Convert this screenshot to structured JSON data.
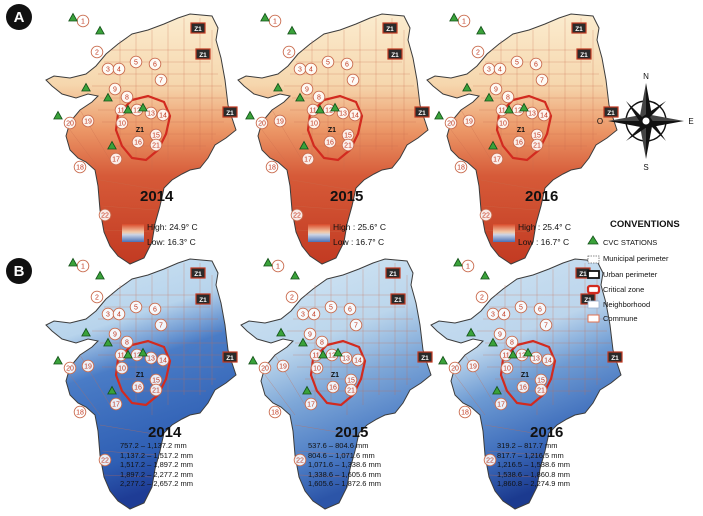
{
  "panels": [
    {
      "letter": "A",
      "type": "temperature",
      "maps": [
        {
          "year": "2014",
          "legend": {
            "high": "High: 24.9° C",
            "low": "Low: 16.3° C"
          }
        },
        {
          "year": "2015",
          "legend": {
            "high": "High : 25.6° C",
            "low": "Low : 16.7° C"
          }
        },
        {
          "year": "2016",
          "legend": {
            "high": "High : 25.4° C",
            "low": "Low : 16.7° C"
          }
        }
      ]
    },
    {
      "letter": "B",
      "type": "precipitation",
      "maps": [
        {
          "year": "2014",
          "ranges": [
            "757.2 – 1,137.2 mm",
            "1,137.2 – 1,517.2 mm",
            "1,517.2 – 1,897.2 mm",
            "1,897.2 – 2,277.2 mm",
            "2,277.2 – 2,657.2 mm"
          ]
        },
        {
          "year": "2015",
          "ranges": [
            "537.6 – 804.6 mm",
            "804.6 – 1,071.6 mm",
            "1,071.6 – 1,338.6 mm",
            "1,338.6 – 1,605.6 mm",
            "1,605.6 – 1,872.6 mm"
          ]
        },
        {
          "year": "2016",
          "ranges": [
            "319.2 – 817.7 mm",
            "817.7 – 1,216.5 mm",
            "1,216.5 – 1,538.6 mm",
            "1,538.6 – 1,860.8 mm",
            "1,860.8 – 2,274.9 mm"
          ]
        }
      ]
    }
  ],
  "commune_numbers": [
    "1",
    "2",
    "3",
    "4",
    "5",
    "6",
    "7",
    "8",
    "9",
    "10",
    "11",
    "12",
    "13",
    "14",
    "15",
    "16",
    "17",
    "18",
    "19",
    "20",
    "21",
    "22"
  ],
  "zone_label": "Z1",
  "compass": {
    "n": "N",
    "s": "S",
    "e": "E",
    "w": "O"
  },
  "conventions": {
    "title": "CONVENTIONS",
    "items": [
      {
        "key": "cvc",
        "label": "CVC STATIONS"
      },
      {
        "key": "municipal",
        "label": "Municipal perimeter"
      },
      {
        "key": "urban",
        "label": "Urban perimeter"
      },
      {
        "key": "critical",
        "label": "Critical zone"
      },
      {
        "key": "neighborhood",
        "label": "Neighborhood"
      },
      {
        "key": "commune",
        "label": "Commune"
      }
    ]
  },
  "colors": {
    "temp_hot": "#c8361f",
    "temp_mid": "#e8845a",
    "temp_cool": "#f6d7ae",
    "temp_pale": "#fbeccf",
    "rain_dark": "#203f99",
    "rain_mid": "#3a6bbf",
    "rain_light": "#8bb3de",
    "rain_pale": "#d2e6f4",
    "critical": "#d22a1f",
    "station": "#3aa23a",
    "commune_line": "#c96b4d"
  }
}
